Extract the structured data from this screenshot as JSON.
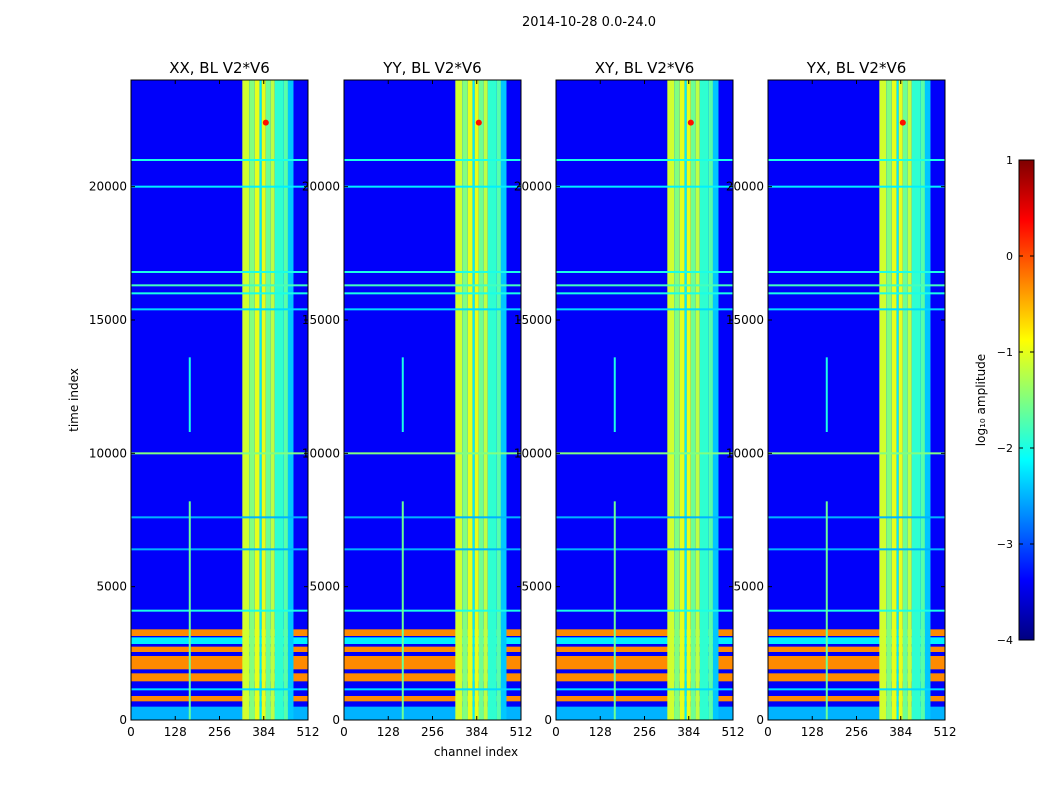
{
  "figure": {
    "suptitle": "2014-10-28 0.0-24.0",
    "xlabel": "channel index",
    "ylabel": "time index"
  },
  "chart_data": [
    {
      "type": "heatmap",
      "title": "XX, BL V2*V6",
      "pol": "XX"
    },
    {
      "type": "heatmap",
      "title": "YY, BL V2*V6",
      "pol": "YY"
    },
    {
      "type": "heatmap",
      "title": "XY, BL V2*V6",
      "pol": "XY"
    },
    {
      "type": "heatmap",
      "title": "YX, BL V2*V6",
      "pol": "YX"
    }
  ],
  "axes": {
    "xlim": [
      0,
      512
    ],
    "ylim": [
      0,
      24000
    ],
    "xticks": [
      0,
      128,
      256,
      384,
      512
    ],
    "yticks": [
      0,
      5000,
      10000,
      15000,
      20000
    ],
    "background_level": -3.4,
    "channel_bands": [
      {
        "x0": 322,
        "x1": 342,
        "level": -1.1
      },
      {
        "x0": 342,
        "x1": 358,
        "level": -1.5
      },
      {
        "x0": 358,
        "x1": 372,
        "level": -1.0
      },
      {
        "x0": 372,
        "x1": 378,
        "level": -2.2
      },
      {
        "x0": 378,
        "x1": 390,
        "level": -1.0
      },
      {
        "x0": 390,
        "x1": 404,
        "level": -1.6
      },
      {
        "x0": 404,
        "x1": 416,
        "level": -1.2
      },
      {
        "x0": 416,
        "x1": 442,
        "level": -1.9
      },
      {
        "x0": 442,
        "x1": 454,
        "level": -1.7
      },
      {
        "x0": 454,
        "x1": 470,
        "level": -2.4
      }
    ],
    "time_bands": [
      {
        "t0": 3150,
        "t1": 3400,
        "level": -0.3
      },
      {
        "t0": 2850,
        "t1": 3100,
        "level": -2.2
      },
      {
        "t0": 2550,
        "t1": 2750,
        "level": -0.3
      },
      {
        "t0": 1900,
        "t1": 2400,
        "level": -0.3
      },
      {
        "t0": 1450,
        "t1": 1750,
        "level": -0.3
      },
      {
        "t0": 700,
        "t1": 900,
        "level": -0.3
      },
      {
        "t0": 0,
        "t1": 500,
        "level": -2.5
      }
    ],
    "time_lines": [
      {
        "t": 21000,
        "level": -2.0
      },
      {
        "t": 20000,
        "level": -2.2
      },
      {
        "t": 16800,
        "level": -2.0
      },
      {
        "t": 16300,
        "level": -1.8
      },
      {
        "t": 16000,
        "level": -2.0
      },
      {
        "t": 15400,
        "level": -2.3
      },
      {
        "t": 10000,
        "level": -1.5
      },
      {
        "t": 7600,
        "level": -2.5
      },
      {
        "t": 6400,
        "level": -2.5
      },
      {
        "t": 4100,
        "level": -2.0
      },
      {
        "t": 1150,
        "level": -2.3
      }
    ],
    "channel_lines": [
      {
        "x": 170,
        "t0": 0,
        "t1": 8200,
        "level": -1.6
      },
      {
        "x": 170,
        "t0": 10800,
        "t1": 13600,
        "level": -2.0
      }
    ],
    "hotspot": {
      "x": 390,
      "t": 22400,
      "level": 0.3
    }
  },
  "colorbar": {
    "label": "log₁₀ amplitude",
    "min": -4,
    "max": 1,
    "ticks": [
      "1",
      "0",
      "−1",
      "−2",
      "−3",
      "−4"
    ],
    "stops": [
      "#00007f",
      "#0000ff",
      "#0080ff",
      "#00ffff",
      "#80ff80",
      "#ffff00",
      "#ff8000",
      "#ff0000",
      "#7f0000"
    ]
  }
}
